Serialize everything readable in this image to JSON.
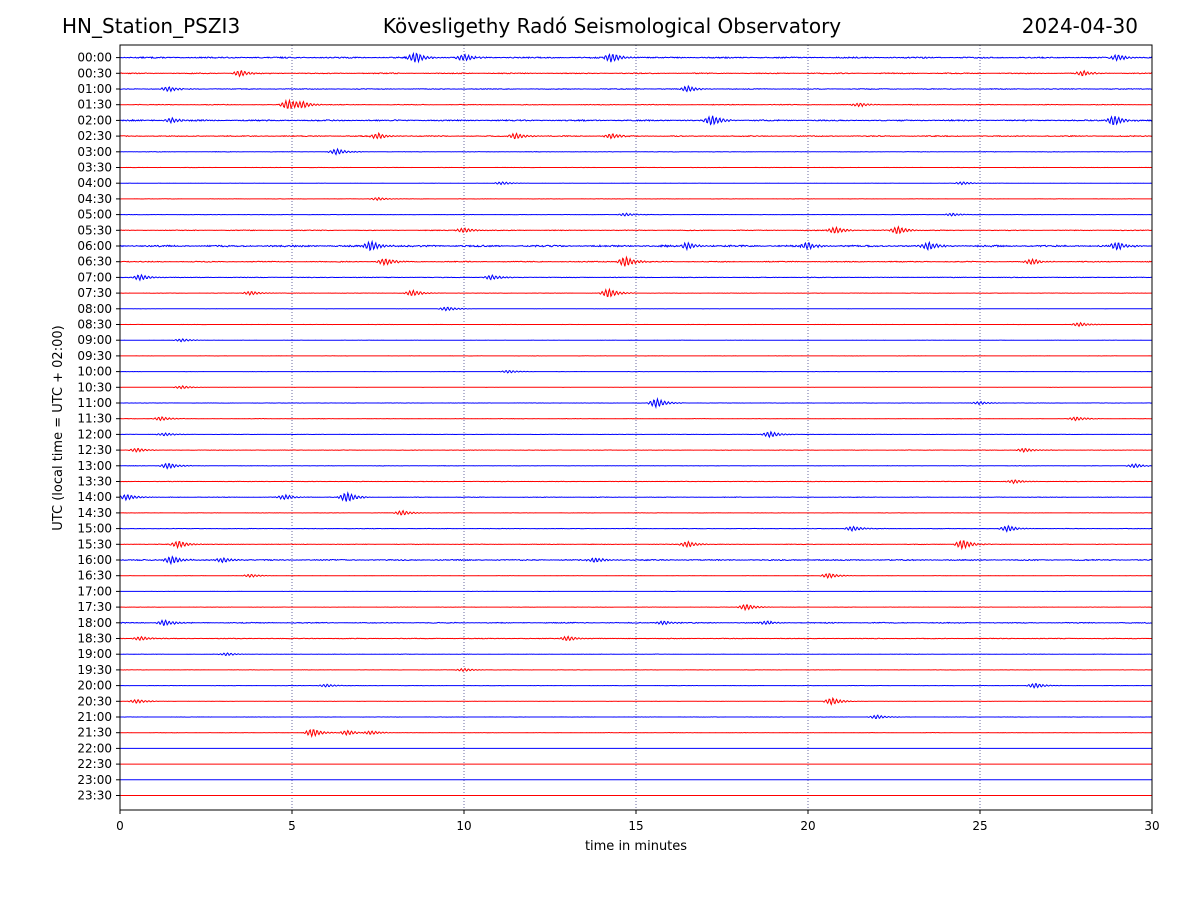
{
  "header": {
    "station": "HN_Station_PSZI3",
    "observatory": "Kövesligethy Radó Seismological Observatory",
    "date": "2024-04-30"
  },
  "chart_data": {
    "type": "line",
    "title": "Kövesligethy Radó Seismological Observatory",
    "xlabel": "time in minutes",
    "ylabel": "UTC (local time = UTC + 02:00)",
    "xlim": [
      0,
      30
    ],
    "xticks": [
      0,
      5,
      10,
      15,
      20,
      25,
      30
    ],
    "grid": "vertical dotted lines at x ticks",
    "trace_colors": [
      "#0000ff",
      "#ff0000"
    ],
    "rows": [
      {
        "label": "00:00",
        "amp": 0.35,
        "events": [
          [
            8.6,
            1.0
          ],
          [
            10,
            0.7
          ],
          [
            14.3,
            0.9
          ],
          [
            29,
            0.6
          ]
        ]
      },
      {
        "label": "00:30",
        "amp": 0.25,
        "events": [
          [
            3.5,
            0.6
          ],
          [
            28,
            0.5
          ]
        ]
      },
      {
        "label": "01:00",
        "amp": 0.2,
        "events": [
          [
            1.4,
            0.5
          ],
          [
            16.5,
            0.6
          ]
        ]
      },
      {
        "label": "01:30",
        "amp": 0.18,
        "events": [
          [
            4.9,
            1.0
          ],
          [
            5.3,
            0.6
          ],
          [
            21.5,
            0.4
          ]
        ]
      },
      {
        "label": "02:00",
        "amp": 0.35,
        "events": [
          [
            17.2,
            1.0
          ],
          [
            28.9,
            1.0
          ],
          [
            1.5,
            0.5
          ]
        ]
      },
      {
        "label": "02:30",
        "amp": 0.25,
        "events": [
          [
            7.5,
            0.6
          ],
          [
            11.5,
            0.6
          ],
          [
            14.3,
            0.5
          ]
        ]
      },
      {
        "label": "03:00",
        "amp": 0.12,
        "events": [
          [
            6.3,
            0.6
          ]
        ]
      },
      {
        "label": "03:30",
        "amp": 0.05,
        "events": []
      },
      {
        "label": "04:00",
        "amp": 0.06,
        "events": [
          [
            11.1,
            0.3
          ],
          [
            24.5,
            0.3
          ]
        ]
      },
      {
        "label": "04:30",
        "amp": 0.06,
        "events": [
          [
            7.5,
            0.3
          ]
        ]
      },
      {
        "label": "05:00",
        "amp": 0.08,
        "events": [
          [
            14.7,
            0.3
          ],
          [
            24.2,
            0.3
          ]
        ]
      },
      {
        "label": "05:30",
        "amp": 0.2,
        "events": [
          [
            20.8,
            0.7
          ],
          [
            22.6,
            0.8
          ],
          [
            10,
            0.5
          ]
        ]
      },
      {
        "label": "06:00",
        "amp": 0.45,
        "events": [
          [
            7.3,
            1.0
          ],
          [
            16.5,
            0.7
          ],
          [
            20,
            0.7
          ],
          [
            23.5,
            0.9
          ],
          [
            29,
            0.8
          ]
        ]
      },
      {
        "label": "06:30",
        "amp": 0.25,
        "events": [
          [
            14.7,
            1.0
          ],
          [
            7.7,
            0.7
          ],
          [
            26.5,
            0.6
          ]
        ]
      },
      {
        "label": "07:00",
        "amp": 0.15,
        "events": [
          [
            0.6,
            0.6
          ],
          [
            10.8,
            0.5
          ]
        ]
      },
      {
        "label": "07:30",
        "amp": 0.08,
        "events": [
          [
            14.2,
            0.9
          ],
          [
            8.5,
            0.6
          ],
          [
            3.8,
            0.4
          ]
        ]
      },
      {
        "label": "08:00",
        "amp": 0.04,
        "events": [
          [
            9.5,
            0.4
          ]
        ]
      },
      {
        "label": "08:30",
        "amp": 0.04,
        "events": [
          [
            27.9,
            0.4
          ]
        ]
      },
      {
        "label": "09:00",
        "amp": 0.06,
        "events": [
          [
            1.8,
            0.3
          ]
        ]
      },
      {
        "label": "09:30",
        "amp": 0.04,
        "events": []
      },
      {
        "label": "10:00",
        "amp": 0.04,
        "events": [
          [
            11.3,
            0.3
          ]
        ]
      },
      {
        "label": "10:30",
        "amp": 0.04,
        "events": [
          [
            1.8,
            0.3
          ]
        ]
      },
      {
        "label": "11:00",
        "amp": 0.08,
        "events": [
          [
            15.6,
            0.9
          ],
          [
            25,
            0.3
          ]
        ]
      },
      {
        "label": "11:30",
        "amp": 0.1,
        "events": [
          [
            1.2,
            0.4
          ],
          [
            27.8,
            0.4
          ]
        ]
      },
      {
        "label": "12:00",
        "amp": 0.08,
        "events": [
          [
            18.9,
            0.6
          ],
          [
            1.3,
            0.3
          ]
        ]
      },
      {
        "label": "12:30",
        "amp": 0.1,
        "events": [
          [
            0.5,
            0.4
          ],
          [
            26.3,
            0.4
          ]
        ]
      },
      {
        "label": "13:00",
        "amp": 0.1,
        "events": [
          [
            1.4,
            0.6
          ],
          [
            29.5,
            0.4
          ]
        ]
      },
      {
        "label": "13:30",
        "amp": 0.1,
        "events": [
          [
            26,
            0.4
          ]
        ]
      },
      {
        "label": "14:00",
        "amp": 0.15,
        "events": [
          [
            6.6,
            1.0
          ],
          [
            0.2,
            0.6
          ],
          [
            4.8,
            0.5
          ]
        ]
      },
      {
        "label": "14:30",
        "amp": 0.06,
        "events": [
          [
            8.2,
            0.5
          ]
        ]
      },
      {
        "label": "15:00",
        "amp": 0.1,
        "events": [
          [
            25.8,
            0.6
          ],
          [
            21.3,
            0.5
          ]
        ]
      },
      {
        "label": "15:30",
        "amp": 0.15,
        "events": [
          [
            24.5,
            0.9
          ],
          [
            1.7,
            0.7
          ],
          [
            16.5,
            0.6
          ]
        ]
      },
      {
        "label": "16:00",
        "amp": 0.3,
        "events": [
          [
            1.5,
            0.8
          ],
          [
            3,
            0.5
          ],
          [
            13.8,
            0.5
          ]
        ]
      },
      {
        "label": "16:30",
        "amp": 0.06,
        "events": [
          [
            20.6,
            0.5
          ],
          [
            3.8,
            0.3
          ]
        ]
      },
      {
        "label": "17:00",
        "amp": 0.04,
        "events": []
      },
      {
        "label": "17:30",
        "amp": 0.06,
        "events": [
          [
            18.2,
            0.6
          ]
        ]
      },
      {
        "label": "18:00",
        "amp": 0.25,
        "events": [
          [
            1.3,
            0.6
          ],
          [
            15.8,
            0.4
          ],
          [
            18.8,
            0.4
          ]
        ]
      },
      {
        "label": "18:30",
        "amp": 0.15,
        "events": [
          [
            13,
            0.5
          ],
          [
            0.6,
            0.4
          ]
        ]
      },
      {
        "label": "19:00",
        "amp": 0.1,
        "events": [
          [
            3.1,
            0.3
          ]
        ]
      },
      {
        "label": "19:30",
        "amp": 0.06,
        "events": [
          [
            10,
            0.3
          ]
        ]
      },
      {
        "label": "20:00",
        "amp": 0.06,
        "events": [
          [
            26.6,
            0.5
          ],
          [
            6,
            0.3
          ]
        ]
      },
      {
        "label": "20:30",
        "amp": 0.08,
        "events": [
          [
            20.7,
            0.7
          ],
          [
            0.5,
            0.4
          ]
        ]
      },
      {
        "label": "21:00",
        "amp": 0.06,
        "events": [
          [
            22,
            0.4
          ]
        ]
      },
      {
        "label": "21:30",
        "amp": 0.1,
        "events": [
          [
            5.6,
            0.8
          ],
          [
            6.6,
            0.5
          ],
          [
            7.3,
            0.4
          ]
        ]
      },
      {
        "label": "22:00",
        "amp": 0.02,
        "events": []
      },
      {
        "label": "22:30",
        "amp": 0.02,
        "events": []
      },
      {
        "label": "23:00",
        "amp": 0.02,
        "events": []
      },
      {
        "label": "23:30",
        "amp": 0.02,
        "events": []
      }
    ]
  }
}
